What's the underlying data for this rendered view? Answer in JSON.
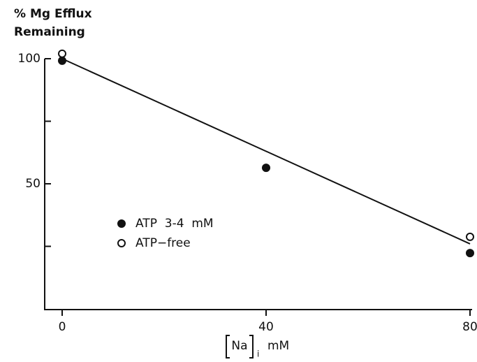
{
  "chart_data": {
    "type": "scatter",
    "ylabel_lines": [
      "% Mg Efflux",
      "Remaining"
    ],
    "xlabel": {
      "name": "Na",
      "subscript": "i",
      "unit": "mM"
    },
    "xlim": [
      0,
      80
    ],
    "xticks": [
      0,
      40,
      80
    ],
    "ylim": [
      0,
      100
    ],
    "yticks": [
      50,
      100
    ],
    "yminor_ticks": [
      25,
      75
    ],
    "legend": "lower left",
    "series": [
      {
        "name": "ATP  3-4  mM",
        "marker": "filled",
        "color": "#111111",
        "x": [
          0,
          40,
          80
        ],
        "values": [
          99.2,
          56.4,
          22.3
        ]
      },
      {
        "name": "ATP−free",
        "marker": "open",
        "color": "#111111",
        "x": [
          0,
          80
        ],
        "values": [
          102,
          28.8
        ]
      }
    ],
    "fit": {
      "x": [
        0,
        80
      ],
      "y": [
        100,
        26
      ]
    }
  }
}
